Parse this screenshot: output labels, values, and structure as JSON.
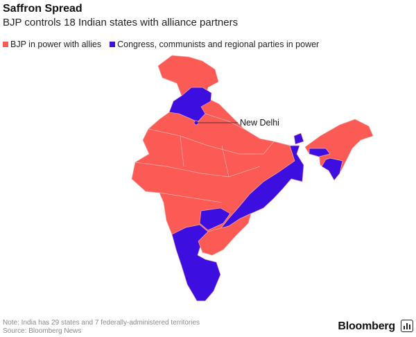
{
  "header": {
    "title": "Saffron Spread",
    "subtitle": "BJP controls 18 Indian states with alliance partners"
  },
  "legend": {
    "items": [
      {
        "label": "BJP in power with allies",
        "color": "#fb5a55"
      },
      {
        "label": "Congress, communists and regional parties in power",
        "color": "#3d0ee0"
      }
    ]
  },
  "map": {
    "annotation": "New Delhi",
    "bjp_color": "#fb5a55",
    "opposition_color": "#3d0ee0",
    "border_color": "#f5a8a3"
  },
  "footer": {
    "note": "Note: India has 29 states and 7 federally-administered territories",
    "source": "Source: Bloomberg News",
    "brand": "Bloomberg"
  }
}
